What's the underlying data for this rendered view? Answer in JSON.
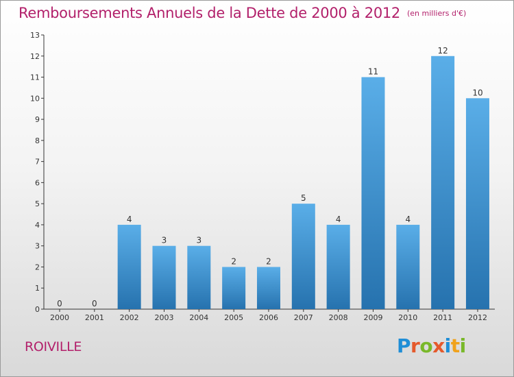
{
  "header": {
    "title": "Remboursements Annuels de la Dette de 2000 à 2012",
    "unit": "(en milliers d'€)"
  },
  "footer": {
    "location": "ROIVILLE",
    "logo_text": "Proxiti",
    "logo_colors": [
      "#1f8ed6",
      "#e5592b",
      "#79b82a",
      "#e5592b",
      "#1f8ed6",
      "#f0a21c",
      "#79b82a"
    ]
  },
  "chart_data": {
    "type": "bar",
    "title": "Remboursements Annuels de la Dette de 2000 à 2012",
    "subtitle": "(en milliers d'€)",
    "xlabel": "",
    "ylabel": "",
    "categories": [
      "2000",
      "2001",
      "2002",
      "2003",
      "2004",
      "2005",
      "2006",
      "2007",
      "2008",
      "2009",
      "2010",
      "2011",
      "2012"
    ],
    "values": [
      0,
      0,
      4,
      3,
      3,
      2,
      2,
      5,
      4,
      11,
      4,
      12,
      10
    ],
    "y_ticks": [
      0,
      1,
      2,
      3,
      4,
      5,
      6,
      7,
      8,
      9,
      10,
      11,
      12,
      13
    ],
    "ylim": [
      0,
      13
    ],
    "grid": false,
    "legend": "none",
    "bar_color_top": "#5aaee8",
    "bar_color_bottom": "#2672ae"
  }
}
